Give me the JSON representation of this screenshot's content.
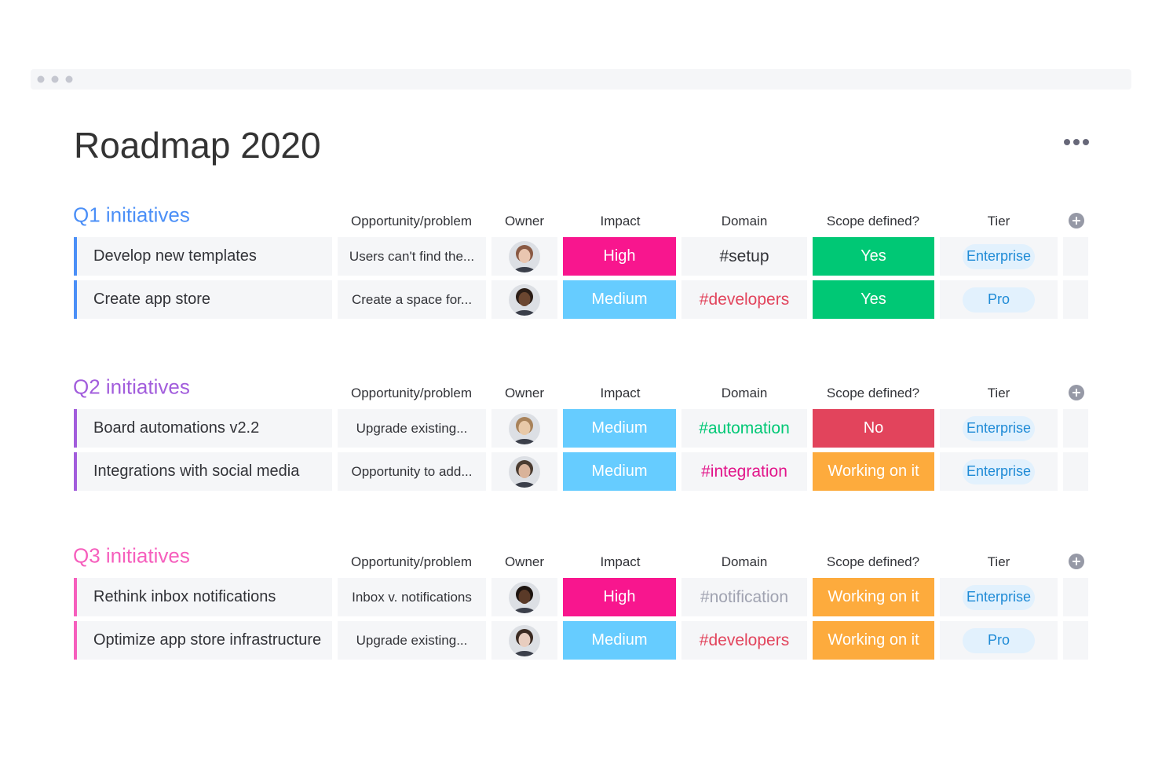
{
  "title": "Roadmap 2020",
  "groups": [
    {
      "title": "Q1 initiatives",
      "columns": [
        "Opportunity/problem",
        "Owner",
        "Impact",
        "Domain",
        "Scope defined?",
        "Tier"
      ],
      "rows": [
        {
          "name": "Develop new templates",
          "opportunity": "Users can't find the...",
          "impact": "High",
          "domain": "#setup",
          "scope": "Yes",
          "tier": "Enterprise"
        },
        {
          "name": "Create app store",
          "opportunity": "Create a space for...",
          "impact": "Medium",
          "domain": "#developers",
          "scope": "Yes",
          "tier": "Pro"
        }
      ]
    },
    {
      "title": "Q2 initiatives",
      "columns": [
        "Opportunity/problem",
        "Owner",
        "Impact",
        "Domain",
        "Scope defined?",
        "Tier"
      ],
      "rows": [
        {
          "name": "Board automations v2.2",
          "opportunity": "Upgrade existing...",
          "impact": "Medium",
          "domain": "#automation",
          "scope": "No",
          "tier": "Enterprise"
        },
        {
          "name": "Integrations with social media",
          "opportunity": "Opportunity to add...",
          "impact": "Medium",
          "domain": "#integration",
          "scope": "Working on it",
          "tier": "Enterprise"
        }
      ]
    },
    {
      "title": "Q3 initiatives",
      "columns": [
        "Opportunity/problem",
        "Owner",
        "Impact",
        "Domain",
        "Scope defined?",
        "Tier"
      ],
      "rows": [
        {
          "name": "Rethink inbox notifications",
          "opportunity": "Inbox v. notifications",
          "impact": "High",
          "domain": "#notification",
          "scope": "Working on it",
          "tier": "Enterprise"
        },
        {
          "name": "Optimize app store infrastructure",
          "opportunity": "Upgrade existing...",
          "impact": "Medium",
          "domain": "#developers",
          "scope": "Working on it",
          "tier": "Pro"
        }
      ]
    }
  ]
}
